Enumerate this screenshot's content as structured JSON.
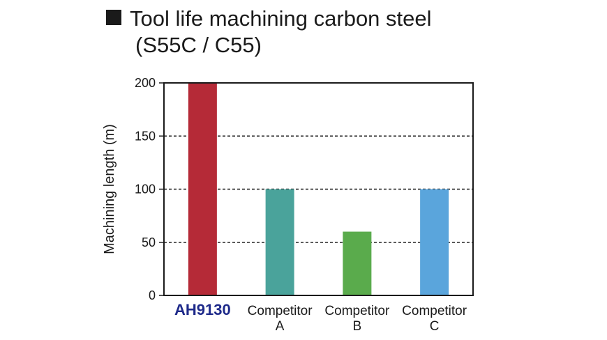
{
  "title": {
    "line1": "Tool life machining carbon steel",
    "line2": "(S55C / C55)"
  },
  "chart_data": {
    "type": "bar",
    "title": "Tool life machining carbon steel (S55C / C55)",
    "xlabel": "",
    "ylabel": "Machining length (m)",
    "ylim": [
      0,
      200
    ],
    "yticks": [
      0,
      50,
      100,
      150,
      200
    ],
    "grid": "horizontal dashed",
    "categories": [
      {
        "line1": "AH9130",
        "line2": "",
        "highlight": true
      },
      {
        "line1": "Competitor",
        "line2": "A",
        "highlight": false
      },
      {
        "line1": "Competitor",
        "line2": "B",
        "highlight": false
      },
      {
        "line1": "Competitor",
        "line2": "C",
        "highlight": false
      }
    ],
    "values": [
      200,
      100,
      60,
      100
    ],
    "colors": [
      "#b52a37",
      "#4aa39b",
      "#5aab4c",
      "#5aa5dc"
    ],
    "highlight_label_color": "#1e2a8a"
  }
}
